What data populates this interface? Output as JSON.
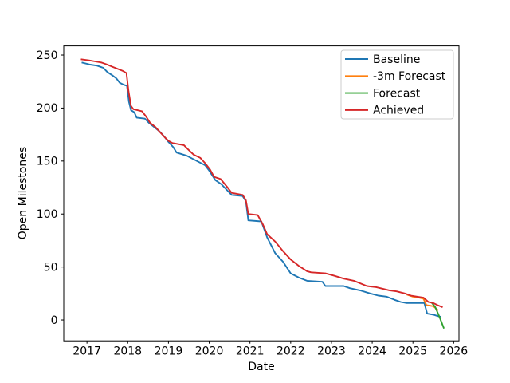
{
  "chart_data": {
    "type": "line",
    "title": "",
    "xlabel": "Date",
    "ylabel": "Open Milestones",
    "xlim": [
      2016.43,
      2026.13
    ],
    "ylim": [
      -19.7,
      258.6
    ],
    "x_ticks": [
      2017,
      2018,
      2019,
      2020,
      2021,
      2022,
      2023,
      2024,
      2025,
      2026
    ],
    "y_ticks": [
      0,
      50,
      100,
      150,
      200,
      250
    ],
    "grid": false,
    "legend": {
      "location": "upper right",
      "entries": [
        "Baseline",
        "-3m Forecast",
        "Forecast",
        "Achieved"
      ]
    },
    "series": [
      {
        "name": "Baseline",
        "color": "#1f77b4",
        "points": [
          [
            2016.87,
            243
          ],
          [
            2017.08,
            241
          ],
          [
            2017.25,
            240
          ],
          [
            2017.4,
            238
          ],
          [
            2017.5,
            234
          ],
          [
            2017.62,
            231
          ],
          [
            2017.72,
            228
          ],
          [
            2017.8,
            224
          ],
          [
            2017.9,
            222
          ],
          [
            2017.98,
            221
          ],
          [
            2018.03,
            206
          ],
          [
            2018.08,
            198
          ],
          [
            2018.16,
            196
          ],
          [
            2018.22,
            191
          ],
          [
            2018.42,
            190
          ],
          [
            2018.52,
            186
          ],
          [
            2018.65,
            182
          ],
          [
            2018.78,
            178
          ],
          [
            2018.9,
            173
          ],
          [
            2019.0,
            168
          ],
          [
            2019.12,
            163
          ],
          [
            2019.2,
            158
          ],
          [
            2019.45,
            155
          ],
          [
            2019.6,
            152
          ],
          [
            2019.75,
            149
          ],
          [
            2019.9,
            146
          ],
          [
            2020.0,
            141
          ],
          [
            2020.15,
            132
          ],
          [
            2020.3,
            128
          ],
          [
            2020.45,
            122
          ],
          [
            2020.55,
            118
          ],
          [
            2020.82,
            117
          ],
          [
            2020.9,
            112
          ],
          [
            2020.96,
            94
          ],
          [
            2021.28,
            93
          ],
          [
            2021.42,
            78
          ],
          [
            2021.62,
            63
          ],
          [
            2021.81,
            55
          ],
          [
            2022.0,
            44
          ],
          [
            2022.2,
            40
          ],
          [
            2022.4,
            37
          ],
          [
            2022.78,
            36
          ],
          [
            2022.85,
            32
          ],
          [
            2023.3,
            32
          ],
          [
            2023.45,
            30
          ],
          [
            2023.7,
            28
          ],
          [
            2023.95,
            25
          ],
          [
            2024.15,
            23
          ],
          [
            2024.35,
            22
          ],
          [
            2024.55,
            19
          ],
          [
            2024.7,
            17
          ],
          [
            2024.85,
            16
          ],
          [
            2025.28,
            16
          ],
          [
            2025.35,
            6
          ],
          [
            2025.5,
            5
          ],
          [
            2025.58,
            4
          ],
          [
            2025.68,
            3
          ]
        ]
      },
      {
        "name": "-3m Forecast",
        "color": "#ff7f0e",
        "points": [
          [
            2024.85,
            24
          ],
          [
            2025.0,
            22
          ],
          [
            2025.15,
            21
          ],
          [
            2025.26,
            20
          ],
          [
            2025.33,
            14
          ],
          [
            2025.5,
            13
          ],
          [
            2025.56,
            11
          ],
          [
            2025.62,
            9
          ]
        ]
      },
      {
        "name": "Forecast",
        "color": "#2ca02c",
        "points": [
          [
            2025.45,
            17
          ],
          [
            2025.55,
            12
          ],
          [
            2025.65,
            3
          ],
          [
            2025.76,
            -8
          ]
        ]
      },
      {
        "name": "Achieved",
        "color": "#d62728",
        "points": [
          [
            2016.85,
            246
          ],
          [
            2017.05,
            245
          ],
          [
            2017.2,
            244
          ],
          [
            2017.35,
            243
          ],
          [
            2017.5,
            241
          ],
          [
            2017.62,
            239
          ],
          [
            2017.75,
            237
          ],
          [
            2017.88,
            235
          ],
          [
            2017.97,
            233
          ],
          [
            2018.02,
            216
          ],
          [
            2018.08,
            202
          ],
          [
            2018.14,
            199
          ],
          [
            2018.35,
            197
          ],
          [
            2018.45,
            192
          ],
          [
            2018.55,
            186
          ],
          [
            2018.68,
            182
          ],
          [
            2018.8,
            177
          ],
          [
            2018.92,
            172
          ],
          [
            2019.0,
            169
          ],
          [
            2019.1,
            167
          ],
          [
            2019.38,
            165
          ],
          [
            2019.48,
            161
          ],
          [
            2019.62,
            156
          ],
          [
            2019.78,
            153
          ],
          [
            2019.9,
            148
          ],
          [
            2020.02,
            142
          ],
          [
            2020.12,
            135
          ],
          [
            2020.28,
            133
          ],
          [
            2020.45,
            125
          ],
          [
            2020.55,
            120
          ],
          [
            2020.82,
            118
          ],
          [
            2020.9,
            113
          ],
          [
            2020.96,
            100
          ],
          [
            2021.19,
            99
          ],
          [
            2021.32,
            90
          ],
          [
            2021.42,
            81
          ],
          [
            2021.62,
            74
          ],
          [
            2021.81,
            65
          ],
          [
            2022.0,
            57
          ],
          [
            2022.2,
            51
          ],
          [
            2022.4,
            46
          ],
          [
            2022.5,
            45
          ],
          [
            2022.85,
            44
          ],
          [
            2023.05,
            42
          ],
          [
            2023.3,
            39
          ],
          [
            2023.55,
            37
          ],
          [
            2023.87,
            32
          ],
          [
            2024.1,
            31
          ],
          [
            2024.42,
            28
          ],
          [
            2024.6,
            27
          ],
          [
            2024.8,
            25
          ],
          [
            2024.95,
            23
          ],
          [
            2025.1,
            22
          ],
          [
            2025.26,
            21
          ],
          [
            2025.38,
            17
          ],
          [
            2025.5,
            16
          ],
          [
            2025.6,
            14
          ],
          [
            2025.73,
            12
          ]
        ]
      }
    ],
    "axis_color": "#000000",
    "legend_border_color": "#cccccc",
    "background_color": "#ffffff"
  }
}
